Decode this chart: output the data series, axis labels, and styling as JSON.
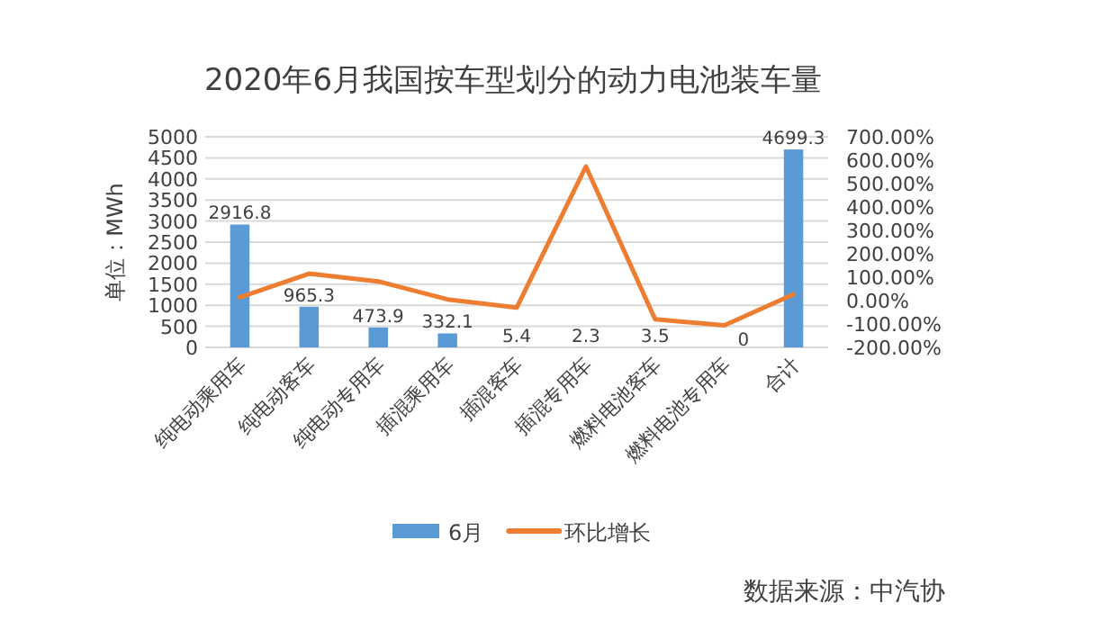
{
  "chart_data": {
    "type": "bar",
    "title": "2020年6月我国按车型划分的动力电池装车量",
    "ylabel": "单位：MWh",
    "categories": [
      "纯电动乘用车",
      "纯电动客车",
      "纯电动专用车",
      "插混乘用车",
      "插混客车",
      "插混专用车",
      "燃料电池客车",
      "燃料电池专用车",
      "合计"
    ],
    "series": [
      {
        "name": "6月",
        "color": "#5b9bd5",
        "values": [
          2916.8,
          965.3,
          473.9,
          332.1,
          5.4,
          2.3,
          3.5,
          0,
          4699.3
        ],
        "value_labels": [
          "2916.8",
          "965.3",
          "473.9",
          "332.1",
          "5.4",
          "2.3",
          "3.5",
          "0",
          "4699.3"
        ]
      },
      {
        "name": "环比增长",
        "type": "line",
        "axis": "y2",
        "color": "#ed7d31",
        "values": [
          14,
          115,
          82,
          5,
          -30,
          573,
          -80,
          -106,
          27
        ]
      }
    ],
    "ylim": [
      0,
      5000
    ],
    "yticks": [
      0,
      500,
      1000,
      1500,
      2000,
      2500,
      3000,
      3500,
      4000,
      4500,
      5000
    ],
    "y2lim": [
      -200,
      700
    ],
    "y2ticks": [
      {
        "value": -200,
        "label": "-200.00%"
      },
      {
        "value": -100,
        "label": "-100.00%"
      },
      {
        "value": 0,
        "label": "0.00%"
      },
      {
        "value": 100,
        "label": "100.00%"
      },
      {
        "value": 200,
        "label": "200.00%"
      },
      {
        "value": 300,
        "label": "300.00%"
      },
      {
        "value": 400,
        "label": "400.00%"
      },
      {
        "value": 500,
        "label": "500.00%"
      },
      {
        "value": 600,
        "label": "600.00%"
      },
      {
        "value": 700,
        "label": "700.00%"
      }
    ],
    "grid": "y",
    "legend": "bottom",
    "annotations": [
      "数据来源：中汽协"
    ]
  }
}
